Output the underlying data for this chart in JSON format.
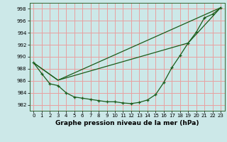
{
  "xlabel": "Graphe pression niveau de la mer (hPa)",
  "bg_color": "#cce8e8",
  "grid_color": "#e8a0a0",
  "line_color": "#1a5c1a",
  "xlim": [
    -0.5,
    23.5
  ],
  "ylim": [
    981.0,
    999.0
  ],
  "yticks": [
    982,
    984,
    986,
    988,
    990,
    992,
    994,
    996,
    998
  ],
  "xticks": [
    0,
    1,
    2,
    3,
    4,
    5,
    6,
    7,
    8,
    9,
    10,
    11,
    12,
    13,
    14,
    15,
    16,
    17,
    18,
    19,
    20,
    21,
    22,
    23
  ],
  "line1_x": [
    0,
    1,
    2,
    3,
    4,
    5,
    6,
    7,
    8,
    9,
    10,
    11,
    12,
    13,
    14,
    15,
    16,
    17,
    18,
    19,
    20,
    21,
    22,
    23
  ],
  "line1_y": [
    989.0,
    987.2,
    985.5,
    985.2,
    984.0,
    983.3,
    983.1,
    982.9,
    982.7,
    982.5,
    982.5,
    982.3,
    982.2,
    982.4,
    982.8,
    983.7,
    985.7,
    988.2,
    990.2,
    992.3,
    994.1,
    996.5,
    997.1,
    998.2
  ],
  "line2_x": [
    0,
    3,
    23
  ],
  "line2_y": [
    989.0,
    986.1,
    998.2
  ],
  "line3_x": [
    0,
    3,
    19,
    23
  ],
  "line3_y": [
    989.0,
    986.1,
    992.3,
    998.2
  ],
  "xlabel_fontsize": 6.5,
  "tick_fontsize": 5.0
}
